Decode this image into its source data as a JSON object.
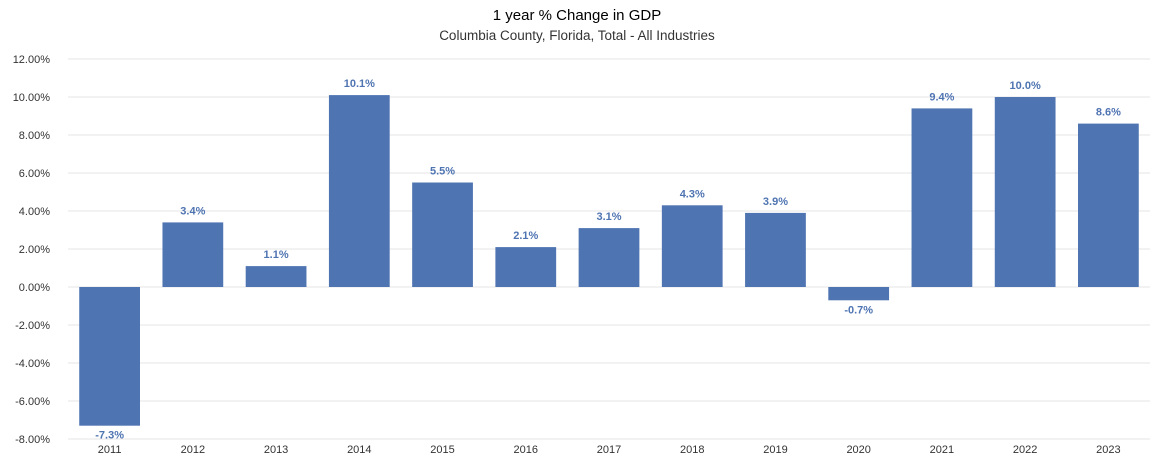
{
  "chart_data": {
    "type": "bar",
    "title": "1 year % Change in GDP",
    "subtitle": "Columbia County, Florida, Total - All Industries",
    "xlabel": "",
    "ylabel": "",
    "categories": [
      "2011",
      "2012",
      "2013",
      "2014",
      "2015",
      "2016",
      "2017",
      "2018",
      "2019",
      "2020",
      "2021",
      "2022",
      "2023"
    ],
    "values": [
      -7.3,
      3.4,
      1.1,
      10.1,
      5.5,
      2.1,
      3.1,
      4.3,
      3.9,
      -0.7,
      9.4,
      10.0,
      8.6
    ],
    "data_labels": [
      "-7.3%",
      "3.4%",
      "1.1%",
      "10.1%",
      "5.5%",
      "2.1%",
      "3.1%",
      "4.3%",
      "3.9%",
      "-0.7%",
      "9.4%",
      "10.0%",
      "8.6%"
    ],
    "ylim": [
      -8,
      12
    ],
    "yticks": [
      12,
      10,
      8,
      6,
      4,
      2,
      0,
      -2,
      -4,
      -6,
      -8
    ],
    "ytick_labels": [
      "12.00%",
      "10.00%",
      "8.00%",
      "6.00%",
      "4.00%",
      "2.00%",
      "0.00%",
      "-2.00%",
      "-4.00%",
      "-6.00%",
      "-8.00%"
    ],
    "grid": true,
    "legend": "none",
    "colors": {
      "bar": "#4f74b2",
      "data_label": "#4f74b2",
      "grid": "#e6e6e6",
      "text": "#333333"
    }
  }
}
